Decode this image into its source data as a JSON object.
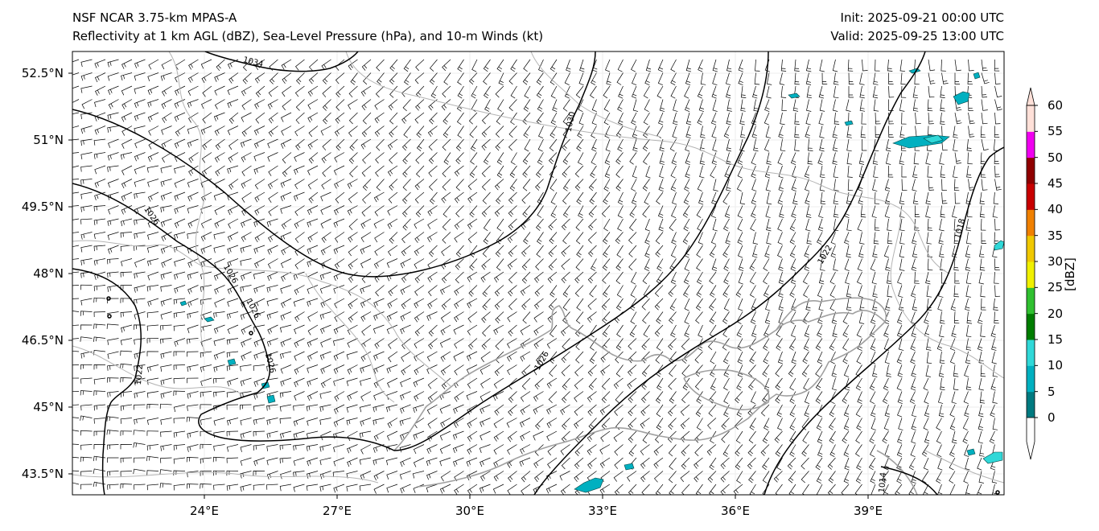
{
  "header": {
    "model": "NSF NCAR 3.75-km MPAS-A",
    "fields": "Reflectivity at 1 km AGL (dBZ), Sea-Level Pressure (hPa), and 10-m Winds (kt)",
    "init": "Init: 2025-09-21 00:00 UTC",
    "valid": "Valid: 2025-09-25 13:00 UTC"
  },
  "map": {
    "lat_labels": [
      "52.5°N",
      "51°N",
      "49.5°N",
      "48°N",
      "46.5°N",
      "45°N",
      "43.5°N"
    ],
    "lat_values": [
      52.5,
      51,
      49.5,
      48,
      46.5,
      45,
      43.5
    ],
    "lon_labels": [
      "24°E",
      "27°E",
      "30°E",
      "33°E",
      "36°E",
      "39°E"
    ],
    "lon_values": [
      24,
      27,
      30,
      33,
      36,
      39
    ],
    "isobar_labels": [
      "1034",
      "1030",
      "1026",
      "1026",
      "1026",
      "1026",
      "1026",
      "1022",
      "1022",
      "1018",
      "1014"
    ],
    "isobar_color": "#000000",
    "coast_color": "#a0a0a0"
  },
  "colorbar": {
    "label": "[dBZ]",
    "ticks": [
      "0",
      "5",
      "10",
      "15",
      "20",
      "25",
      "30",
      "35",
      "40",
      "45",
      "50",
      "55",
      "60"
    ],
    "colors": [
      "#007a80",
      "#00b0c0",
      "#30d8d8",
      "#007d00",
      "#30c030",
      "#f0f000",
      "#f0c800",
      "#f08000",
      "#c80000",
      "#900000",
      "#f000f0",
      "#ffe0d8"
    ]
  }
}
